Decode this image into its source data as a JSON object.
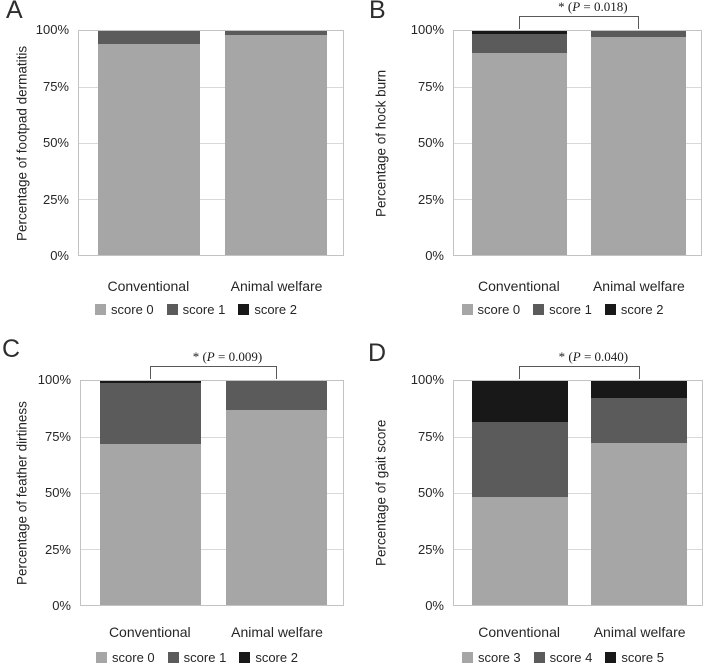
{
  "figure": {
    "background": "#ffffff",
    "description_colors": {
      "score_light": "#a6a6a6",
      "score_mid": "#5b5b5b",
      "score_dark": "#181818",
      "plot_border": "#c3c3c3",
      "gridline": "#d9d9d9",
      "bracket": "#595959"
    }
  },
  "chart_data": [
    {
      "panel_label": "A",
      "type": "bar",
      "stacked": true,
      "orientation": "vertical",
      "ylabel": "Percentage of footpad dermatitis",
      "categories": [
        "Conventional",
        "Animal welfare"
      ],
      "series": [
        {
          "name": "score 0",
          "color": "#a6a6a6",
          "values": [
            94,
            98
          ]
        },
        {
          "name": "score 1",
          "color": "#5b5b5b",
          "values": [
            6,
            2
          ]
        },
        {
          "name": "score 2",
          "color": "#181818",
          "values": [
            0,
            0
          ]
        }
      ],
      "ylim": [
        0,
        100
      ],
      "y_ticks": [
        0,
        25,
        50,
        75,
        100
      ],
      "y_tick_labels": [
        "0%",
        "25%",
        "50%",
        "75%",
        "100%"
      ],
      "grid": true,
      "legend_position": "bottom",
      "significance": null
    },
    {
      "panel_label": "B",
      "type": "bar",
      "stacked": true,
      "orientation": "vertical",
      "ylabel": "Percentage of hock burn",
      "categories": [
        "Conventional",
        "Animal welfare"
      ],
      "series": [
        {
          "name": "score 0",
          "color": "#a6a6a6",
          "values": [
            90,
            97.5
          ]
        },
        {
          "name": "score 1",
          "color": "#5b5b5b",
          "values": [
            8.5,
            2.5
          ]
        },
        {
          "name": "score 2",
          "color": "#181818",
          "values": [
            1.5,
            0
          ]
        }
      ],
      "ylim": [
        0,
        100
      ],
      "y_ticks": [
        0,
        25,
        50,
        75,
        100
      ],
      "y_tick_labels": [
        "0%",
        "25%",
        "50%",
        "75%",
        "100%"
      ],
      "grid": true,
      "legend_position": "bottom",
      "significance": {
        "text": "* (P = 0.018)",
        "prefix": "* (",
        "p_symbol": "P",
        "suffix": " = 0.018)"
      }
    },
    {
      "panel_label": "C",
      "type": "bar",
      "stacked": true,
      "orientation": "vertical",
      "ylabel": "Percentage of feather dirtiness",
      "categories": [
        "Conventional",
        "Animal welfare"
      ],
      "series": [
        {
          "name": "score 0",
          "color": "#a6a6a6",
          "values": [
            72,
            87
          ]
        },
        {
          "name": "score 1",
          "color": "#5b5b5b",
          "values": [
            27,
            13
          ]
        },
        {
          "name": "score 2",
          "color": "#181818",
          "values": [
            1,
            0
          ]
        }
      ],
      "ylim": [
        0,
        100
      ],
      "y_ticks": [
        0,
        25,
        50,
        75,
        100
      ],
      "y_tick_labels": [
        "0%",
        "25%",
        "50%",
        "75%",
        "100%"
      ],
      "grid": true,
      "legend_position": "bottom",
      "significance": {
        "text": "* (P = 0.009)",
        "prefix": "* (",
        "p_symbol": "P",
        "suffix": " = 0.009)"
      }
    },
    {
      "panel_label": "D",
      "type": "bar",
      "stacked": true,
      "orientation": "vertical",
      "ylabel": "Percentage of gait score",
      "categories": [
        "Conventional",
        "Animal welfare"
      ],
      "series": [
        {
          "name": "score 3",
          "color": "#a6a6a6",
          "values": [
            48,
            72.5
          ]
        },
        {
          "name": "score 4",
          "color": "#5b5b5b",
          "values": [
            33.5,
            20
          ]
        },
        {
          "name": "score 5",
          "color": "#181818",
          "values": [
            18.5,
            7.5
          ]
        }
      ],
      "ylim": [
        0,
        100
      ],
      "y_ticks": [
        0,
        25,
        50,
        75,
        100
      ],
      "y_tick_labels": [
        "0%",
        "25%",
        "50%",
        "75%",
        "100%"
      ],
      "grid": true,
      "legend_position": "bottom",
      "significance": {
        "text": "* (P = 0.040)",
        "prefix": "* (",
        "p_symbol": "P",
        "suffix": " = 0.040)"
      }
    }
  ]
}
